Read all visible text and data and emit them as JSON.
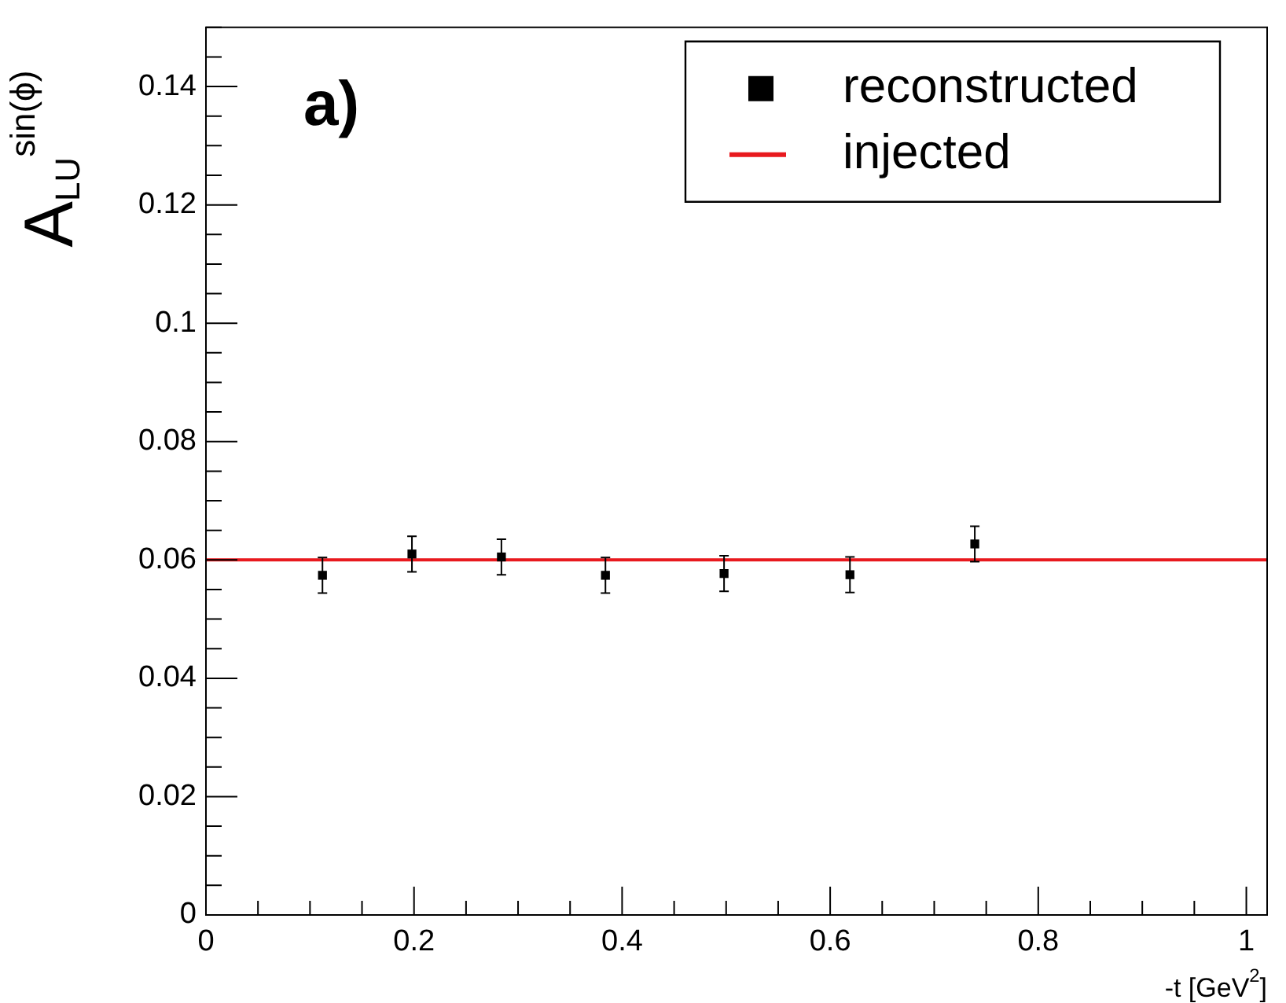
{
  "chart_data": {
    "type": "scatter",
    "xlabel": "-t [GeV$^{2}$]",
    "ylabel": "A$_{LU}$$^{sin(ϕ)}$",
    "annotations": [
      "a)"
    ],
    "xlim": [
      0,
      1.02
    ],
    "ylim": [
      0,
      0.15
    ],
    "xticks": [
      0,
      {
        "value": 0.05,
        "label": null
      },
      {
        "value": 0.1,
        "label": null
      },
      {
        "value": 0.15,
        "label": null
      },
      0.2,
      {
        "value": 0.25,
        "label": null
      },
      {
        "value": 0.3,
        "label": null
      },
      {
        "value": 0.35,
        "label": null
      },
      0.4,
      {
        "value": 0.45,
        "label": null
      },
      {
        "value": 0.5,
        "label": null
      },
      {
        "value": 0.55,
        "label": null
      },
      0.6,
      {
        "value": 0.65,
        "label": null
      },
      {
        "value": 0.7,
        "label": null
      },
      {
        "value": 0.75,
        "label": null
      },
      0.8,
      {
        "value": 0.85,
        "label": null
      },
      {
        "value": 0.9,
        "label": null
      },
      {
        "value": 0.95,
        "label": null
      },
      1
    ],
    "yticks": [
      0,
      {
        "value": 0.005,
        "label": null
      },
      {
        "value": 0.01,
        "label": null
      },
      {
        "value": 0.015,
        "label": null
      },
      0.02,
      {
        "value": 0.025,
        "label": null
      },
      {
        "value": 0.03,
        "label": null
      },
      {
        "value": 0.035,
        "label": null
      },
      0.04,
      {
        "value": 0.045,
        "label": null
      },
      {
        "value": 0.05,
        "label": null
      },
      {
        "value": 0.055,
        "label": null
      },
      0.06,
      {
        "value": 0.065,
        "label": null
      },
      {
        "value": 0.07,
        "label": null
      },
      {
        "value": 0.075,
        "label": null
      },
      0.08,
      {
        "value": 0.085,
        "label": null
      },
      {
        "value": 0.09,
        "label": null
      },
      {
        "value": 0.095,
        "label": null
      },
      0.1,
      {
        "value": 0.105,
        "label": null
      },
      {
        "value": 0.11,
        "label": null
      },
      {
        "value": 0.115,
        "label": null
      },
      0.12,
      {
        "value": 0.125,
        "label": null
      },
      {
        "value": 0.13,
        "label": null
      },
      {
        "value": 0.135,
        "label": null
      },
      0.14,
      {
        "value": 0.145,
        "label": null
      },
      {
        "value": 0.15,
        "label": null
      }
    ],
    "grid": false,
    "legend": "top right",
    "series": [
      {
        "name": "reconstructed",
        "marker": "square",
        "color": "#000000",
        "x": [
          0.112,
          0.198,
          0.284,
          0.384,
          0.498,
          0.619,
          0.739
        ],
        "values": [
          0.0574,
          0.061,
          0.0605,
          0.0574,
          0.0577,
          0.0575,
          0.0627
        ],
        "errors": [
          0.003,
          0.003,
          0.003,
          0.003,
          0.003,
          0.003,
          0.003
        ]
      },
      {
        "name": "injected",
        "type": "line",
        "marker": "none",
        "color": "#e8191e",
        "x": [
          0,
          1.02
        ],
        "values": [
          0.06,
          0.06
        ]
      }
    ]
  }
}
